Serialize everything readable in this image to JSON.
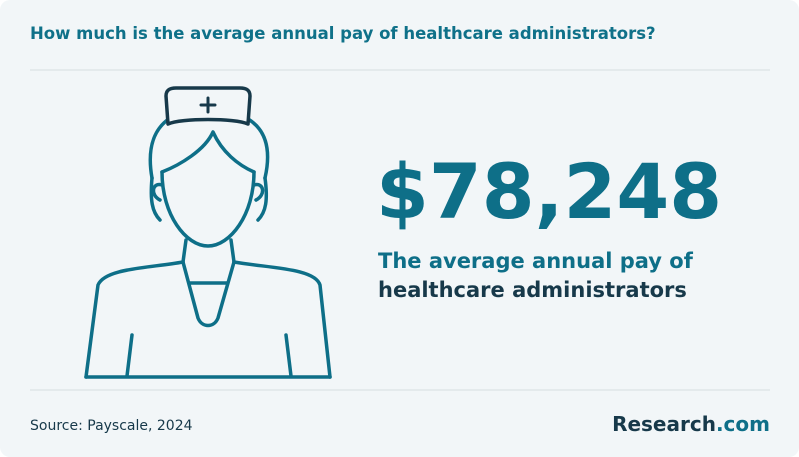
{
  "header": {
    "title": "How much is the average annual pay of healthcare administrators?"
  },
  "stat": {
    "value": "$78,248",
    "caption_line1": "The average annual pay of",
    "caption_line2": "healthcare administrators"
  },
  "footer": {
    "source": "Source: Payscale, 2024",
    "logo_main": "Research",
    "logo_suffix": ".com"
  }
}
